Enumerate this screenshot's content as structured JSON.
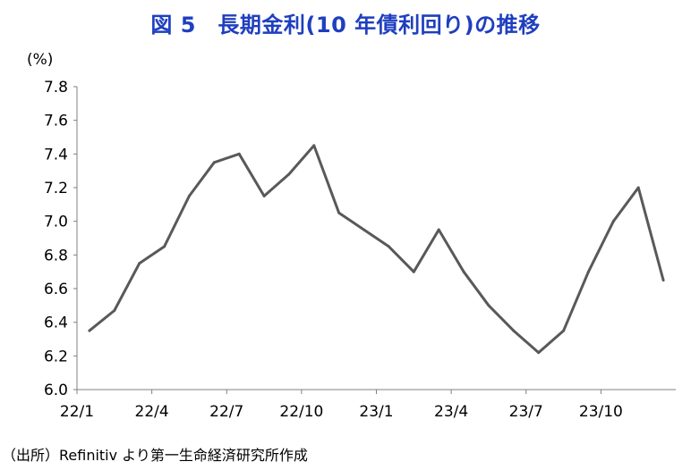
{
  "chart_data": {
    "type": "line",
    "title": "図 5　長期金利(10 年債利回り)の推移",
    "ylabel": "(%)",
    "xlabel": "",
    "ylim": [
      6.0,
      7.8
    ],
    "yticks": [
      "6.0",
      "6.2",
      "6.4",
      "6.6",
      "6.8",
      "7.0",
      "7.2",
      "7.4",
      "7.6",
      "7.8"
    ],
    "xticks": [
      "22/1",
      "22/4",
      "22/7",
      "22/10",
      "23/1",
      "23/4",
      "23/7",
      "23/10"
    ],
    "grid": false,
    "legend": "none",
    "line_color": "#595959",
    "series": [
      {
        "x": [
          "22/1",
          "22/2",
          "22/3",
          "22/4",
          "22/5",
          "22/6",
          "22/7",
          "22/8",
          "22/9",
          "22/10",
          "22/11",
          "22/12",
          "23/1",
          "23/2",
          "23/3",
          "23/4",
          "23/5",
          "23/6",
          "23/7",
          "23/8",
          "23/9",
          "23/10",
          "23/11",
          "23/12"
        ],
        "values": [
          6.35,
          6.47,
          6.75,
          6.85,
          7.15,
          7.35,
          7.4,
          7.15,
          7.28,
          7.45,
          7.05,
          6.95,
          6.85,
          6.7,
          6.95,
          6.7,
          6.5,
          6.35,
          6.22,
          6.35,
          6.7,
          7.0,
          7.2,
          6.65
        ]
      }
    ]
  },
  "source": "（出所）Refinitiv より第一生命経済研究所作成"
}
